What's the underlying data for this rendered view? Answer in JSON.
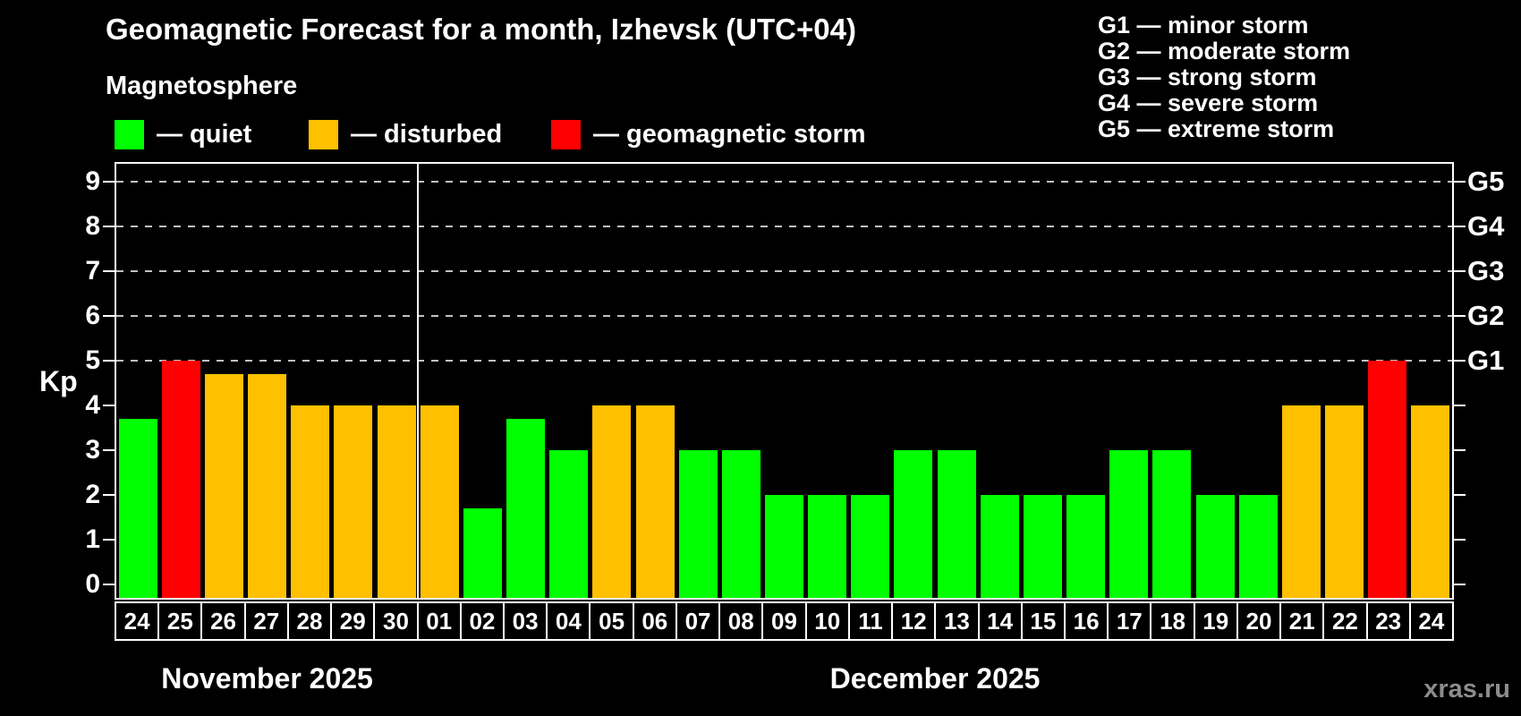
{
  "title": "Geomagnetic Forecast for a month, Izhevsk (UTC+04)",
  "subtitle": "Magnetosphere",
  "legend": [
    {
      "label": "— quiet",
      "status": "quiet"
    },
    {
      "label": "— disturbed",
      "status": "disturbed"
    },
    {
      "label": "— geomagnetic storm",
      "status": "storm"
    }
  ],
  "g_scale_legend": [
    "G1 — minor storm",
    "G2 — moderate storm",
    "G3 — strong storm",
    "G4 — severe storm",
    "G5 — extreme storm"
  ],
  "watermark": "xras.ru",
  "colors": {
    "quiet": "#00ff00",
    "disturbed": "#ffc000",
    "storm": "#ff0000",
    "background": "#000000",
    "text": "#ffffff",
    "grid": "#c0c0c0",
    "watermark": "#8c8c8c"
  },
  "chart_data": {
    "type": "bar",
    "title": "Geomagnetic Forecast for a month, Izhevsk (UTC+04)",
    "ylabel": "Kp",
    "xlabel": "",
    "ylim": [
      0,
      9.7
    ],
    "y_ticks": [
      0,
      1,
      2,
      3,
      4,
      5,
      6,
      7,
      8,
      9
    ],
    "grid_levels": [
      5,
      6,
      7,
      8,
      9
    ],
    "grid_style": "dashed",
    "legend_position": "top",
    "right_axis_labels": [
      {
        "label": "G1",
        "level": 5
      },
      {
        "label": "G2",
        "level": 6
      },
      {
        "label": "G3",
        "level": 7
      },
      {
        "label": "G4",
        "level": 8
      },
      {
        "label": "G5",
        "level": 9
      }
    ],
    "months": [
      {
        "label": "November 2025",
        "days": 7
      },
      {
        "label": "December 2025",
        "days": 24
      }
    ],
    "bars": [
      {
        "day": "24",
        "value": 3.7,
        "status": "quiet"
      },
      {
        "day": "25",
        "value": 5.0,
        "status": "storm"
      },
      {
        "day": "26",
        "value": 4.7,
        "status": "disturbed"
      },
      {
        "day": "27",
        "value": 4.7,
        "status": "disturbed"
      },
      {
        "day": "28",
        "value": 4.0,
        "status": "disturbed"
      },
      {
        "day": "29",
        "value": 4.0,
        "status": "disturbed"
      },
      {
        "day": "30",
        "value": 4.0,
        "status": "disturbed"
      },
      {
        "day": "01",
        "value": 4.0,
        "status": "disturbed"
      },
      {
        "day": "02",
        "value": 1.7,
        "status": "quiet"
      },
      {
        "day": "03",
        "value": 3.7,
        "status": "quiet"
      },
      {
        "day": "04",
        "value": 3.0,
        "status": "quiet"
      },
      {
        "day": "05",
        "value": 4.0,
        "status": "disturbed"
      },
      {
        "day": "06",
        "value": 4.0,
        "status": "disturbed"
      },
      {
        "day": "07",
        "value": 3.0,
        "status": "quiet"
      },
      {
        "day": "08",
        "value": 3.0,
        "status": "quiet"
      },
      {
        "day": "09",
        "value": 2.0,
        "status": "quiet"
      },
      {
        "day": "10",
        "value": 2.0,
        "status": "quiet"
      },
      {
        "day": "11",
        "value": 2.0,
        "status": "quiet"
      },
      {
        "day": "12",
        "value": 3.0,
        "status": "quiet"
      },
      {
        "day": "13",
        "value": 3.0,
        "status": "quiet"
      },
      {
        "day": "14",
        "value": 2.0,
        "status": "quiet"
      },
      {
        "day": "15",
        "value": 2.0,
        "status": "quiet"
      },
      {
        "day": "16",
        "value": 2.0,
        "status": "quiet"
      },
      {
        "day": "17",
        "value": 3.0,
        "status": "quiet"
      },
      {
        "day": "18",
        "value": 3.0,
        "status": "quiet"
      },
      {
        "day": "19",
        "value": 2.0,
        "status": "quiet"
      },
      {
        "day": "20",
        "value": 2.0,
        "status": "quiet"
      },
      {
        "day": "21",
        "value": 4.0,
        "status": "disturbed"
      },
      {
        "day": "22",
        "value": 4.0,
        "status": "disturbed"
      },
      {
        "day": "23",
        "value": 5.0,
        "status": "storm"
      },
      {
        "day": "24",
        "value": 4.0,
        "status": "disturbed"
      }
    ]
  }
}
